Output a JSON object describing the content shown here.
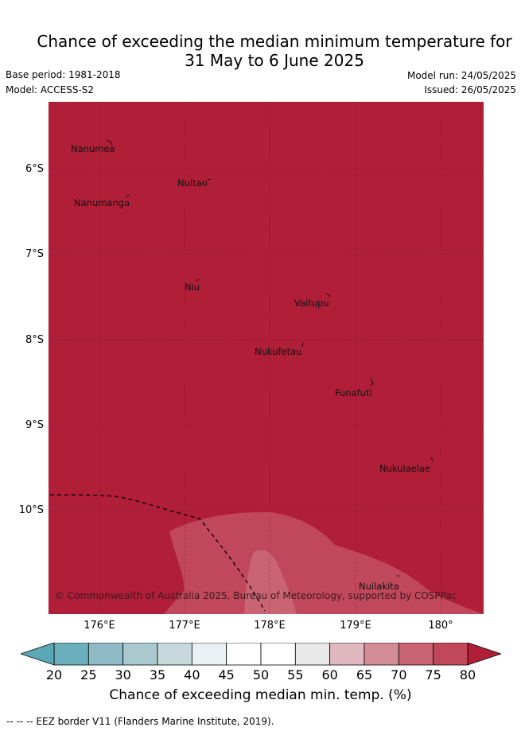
{
  "title": {
    "line1": "Chance of exceeding the median minimum temperature for",
    "line2": "31 May to 6 June 2025"
  },
  "meta": {
    "base_period": "Base period: 1981-2018",
    "model": "Model: ACCESS-S2",
    "model_run": "Model run: 24/05/2025",
    "issued": "Issued: 26/05/2025"
  },
  "map": {
    "background_color": "#B01E38",
    "lat_labels": [
      "6°S",
      "7°S",
      "8°S",
      "9°S",
      "10°S"
    ],
    "lon_labels": [
      "176°E",
      "177°E",
      "178°E",
      "179°E",
      "180°"
    ],
    "places": [
      "Nanumea",
      "Nuitao",
      "Nanumanga",
      "Niu",
      "Vaitupu",
      "Nukufetau",
      "Funafuti",
      "Nukulaelae",
      "Nuilakita"
    ],
    "copyright": "© Commonwealth of Australia 2025, Bureau of Meteorology, supported by COSPPac"
  },
  "colorbar": {
    "ticks": [
      "20",
      "25",
      "30",
      "35",
      "40",
      "45",
      "50",
      "55",
      "60",
      "65",
      "70",
      "75",
      "80"
    ],
    "colors": [
      "#6BAFBC",
      "#8EBBC6",
      "#A9C9CE",
      "#C8D9DD",
      "#E9F1F4",
      "#FFFFFF",
      "#FFFFFF",
      "#E8E8E8",
      "#E0B8BF",
      "#D48C96",
      "#C96472",
      "#C0485A"
    ],
    "under_color": "#5AA8B5",
    "over_color": "#B01E38",
    "label": "Chance of exceeding median min. temp. (%)"
  },
  "legend": {
    "text": "-- -- -- EEZ border V11 (Flanders Marine Institute, 2019)."
  }
}
